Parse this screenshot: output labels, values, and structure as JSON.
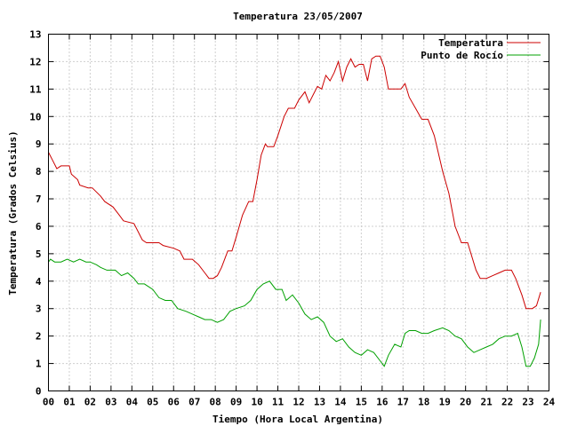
{
  "chart_data": {
    "type": "line",
    "title": "Temperatura 23/05/2007",
    "xlabel": "Tiempo (Hora Local Argentina)",
    "ylabel": "Temperatura (Grados Celsius)",
    "xlim": [
      0,
      24
    ],
    "ylim": [
      0,
      13
    ],
    "x_ticks": [
      "00",
      "01",
      "02",
      "03",
      "04",
      "05",
      "06",
      "07",
      "08",
      "09",
      "10",
      "11",
      "12",
      "13",
      "14",
      "15",
      "16",
      "17",
      "18",
      "19",
      "20",
      "21",
      "22",
      "23",
      "24"
    ],
    "y_ticks": [
      "0",
      "1",
      "2",
      "3",
      "4",
      "5",
      "6",
      "7",
      "8",
      "9",
      "10",
      "11",
      "12",
      "13"
    ],
    "grid": true,
    "legend_position": "top-right",
    "series": [
      {
        "name": "Temperatura",
        "color": "#cc0000",
        "x": [
          0.0,
          0.2,
          0.4,
          0.6,
          1.0,
          1.1,
          1.4,
          1.5,
          1.9,
          2.1,
          2.5,
          2.7,
          3.1,
          3.4,
          3.6,
          4.1,
          4.3,
          4.5,
          4.7,
          5.0,
          5.3,
          5.5,
          6.0,
          6.3,
          6.5,
          6.9,
          7.2,
          7.5,
          7.7,
          7.9,
          8.1,
          8.3,
          8.6,
          8.8,
          9.0,
          9.3,
          9.6,
          9.8,
          10.0,
          10.2,
          10.4,
          10.5,
          10.8,
          11.0,
          11.3,
          11.5,
          11.8,
          12.0,
          12.3,
          12.5,
          12.7,
          12.9,
          13.1,
          13.3,
          13.5,
          13.7,
          13.9,
          14.1,
          14.3,
          14.5,
          14.7,
          14.9,
          15.1,
          15.3,
          15.5,
          15.7,
          15.9,
          16.1,
          16.3,
          16.5,
          16.9,
          17.1,
          17.3,
          17.6,
          17.9,
          18.2,
          18.5,
          18.9,
          19.2,
          19.5,
          19.8,
          20.1,
          20.5,
          20.7,
          21.0,
          21.3,
          21.6,
          21.9,
          22.2,
          22.4,
          22.7,
          22.9,
          23.2,
          23.4,
          23.6
        ],
        "values": [
          8.7,
          8.4,
          8.1,
          8.2,
          8.2,
          7.9,
          7.7,
          7.5,
          7.4,
          7.4,
          7.1,
          6.9,
          6.7,
          6.4,
          6.2,
          6.1,
          5.8,
          5.5,
          5.4,
          5.4,
          5.4,
          5.3,
          5.2,
          5.1,
          4.8,
          4.8,
          4.6,
          4.3,
          4.1,
          4.1,
          4.2,
          4.5,
          5.1,
          5.1,
          5.6,
          6.4,
          6.9,
          6.9,
          7.7,
          8.6,
          9.0,
          8.9,
          8.9,
          9.3,
          10.0,
          10.3,
          10.3,
          10.6,
          10.9,
          10.5,
          10.8,
          11.1,
          11.0,
          11.5,
          11.3,
          11.6,
          12.0,
          11.3,
          11.8,
          12.1,
          11.8,
          11.9,
          11.9,
          11.3,
          12.1,
          12.2,
          12.2,
          11.8,
          11.0,
          11.0,
          11.0,
          11.2,
          10.7,
          10.3,
          9.9,
          9.9,
          9.3,
          8.0,
          7.2,
          6.0,
          5.4,
          5.4,
          4.4,
          4.1,
          4.1,
          4.2,
          4.3,
          4.4,
          4.4,
          4.1,
          3.5,
          3.0,
          3.0,
          3.1,
          3.6
        ]
      },
      {
        "name": "Punto de Rocío",
        "color": "#00a000",
        "x": [
          0.0,
          0.1,
          0.3,
          0.6,
          0.9,
          1.2,
          1.5,
          1.8,
          2.0,
          2.3,
          2.5,
          2.8,
          3.2,
          3.5,
          3.8,
          4.1,
          4.3,
          4.6,
          5.0,
          5.3,
          5.6,
          5.9,
          6.2,
          6.6,
          6.9,
          7.2,
          7.5,
          7.8,
          8.1,
          8.4,
          8.7,
          9.0,
          9.4,
          9.7,
          10.0,
          10.3,
          10.6,
          10.9,
          11.2,
          11.4,
          11.7,
          12.0,
          12.3,
          12.6,
          12.9,
          13.2,
          13.5,
          13.8,
          14.1,
          14.4,
          14.7,
          15.0,
          15.3,
          15.6,
          15.9,
          16.1,
          16.3,
          16.6,
          16.9,
          17.1,
          17.3,
          17.6,
          17.9,
          18.2,
          18.5,
          18.9,
          19.2,
          19.5,
          19.8,
          20.1,
          20.4,
          20.7,
          21.0,
          21.3,
          21.6,
          21.9,
          22.2,
          22.5,
          22.7,
          22.9,
          23.1,
          23.3,
          23.5,
          23.6
        ],
        "values": [
          4.7,
          4.8,
          4.7,
          4.7,
          4.8,
          4.7,
          4.8,
          4.7,
          4.7,
          4.6,
          4.5,
          4.4,
          4.4,
          4.2,
          4.3,
          4.1,
          3.9,
          3.9,
          3.7,
          3.4,
          3.3,
          3.3,
          3.0,
          2.9,
          2.8,
          2.7,
          2.6,
          2.6,
          2.5,
          2.6,
          2.9,
          3.0,
          3.1,
          3.3,
          3.7,
          3.9,
          4.0,
          3.7,
          3.7,
          3.3,
          3.5,
          3.2,
          2.8,
          2.6,
          2.7,
          2.5,
          2.0,
          1.8,
          1.9,
          1.6,
          1.4,
          1.3,
          1.5,
          1.4,
          1.1,
          0.9,
          1.3,
          1.7,
          1.6,
          2.1,
          2.2,
          2.2,
          2.1,
          2.1,
          2.2,
          2.3,
          2.2,
          2.0,
          1.9,
          1.6,
          1.4,
          1.5,
          1.6,
          1.7,
          1.9,
          2.0,
          2.0,
          2.1,
          1.6,
          0.9,
          0.9,
          1.2,
          1.7,
          2.6
        ]
      }
    ]
  }
}
